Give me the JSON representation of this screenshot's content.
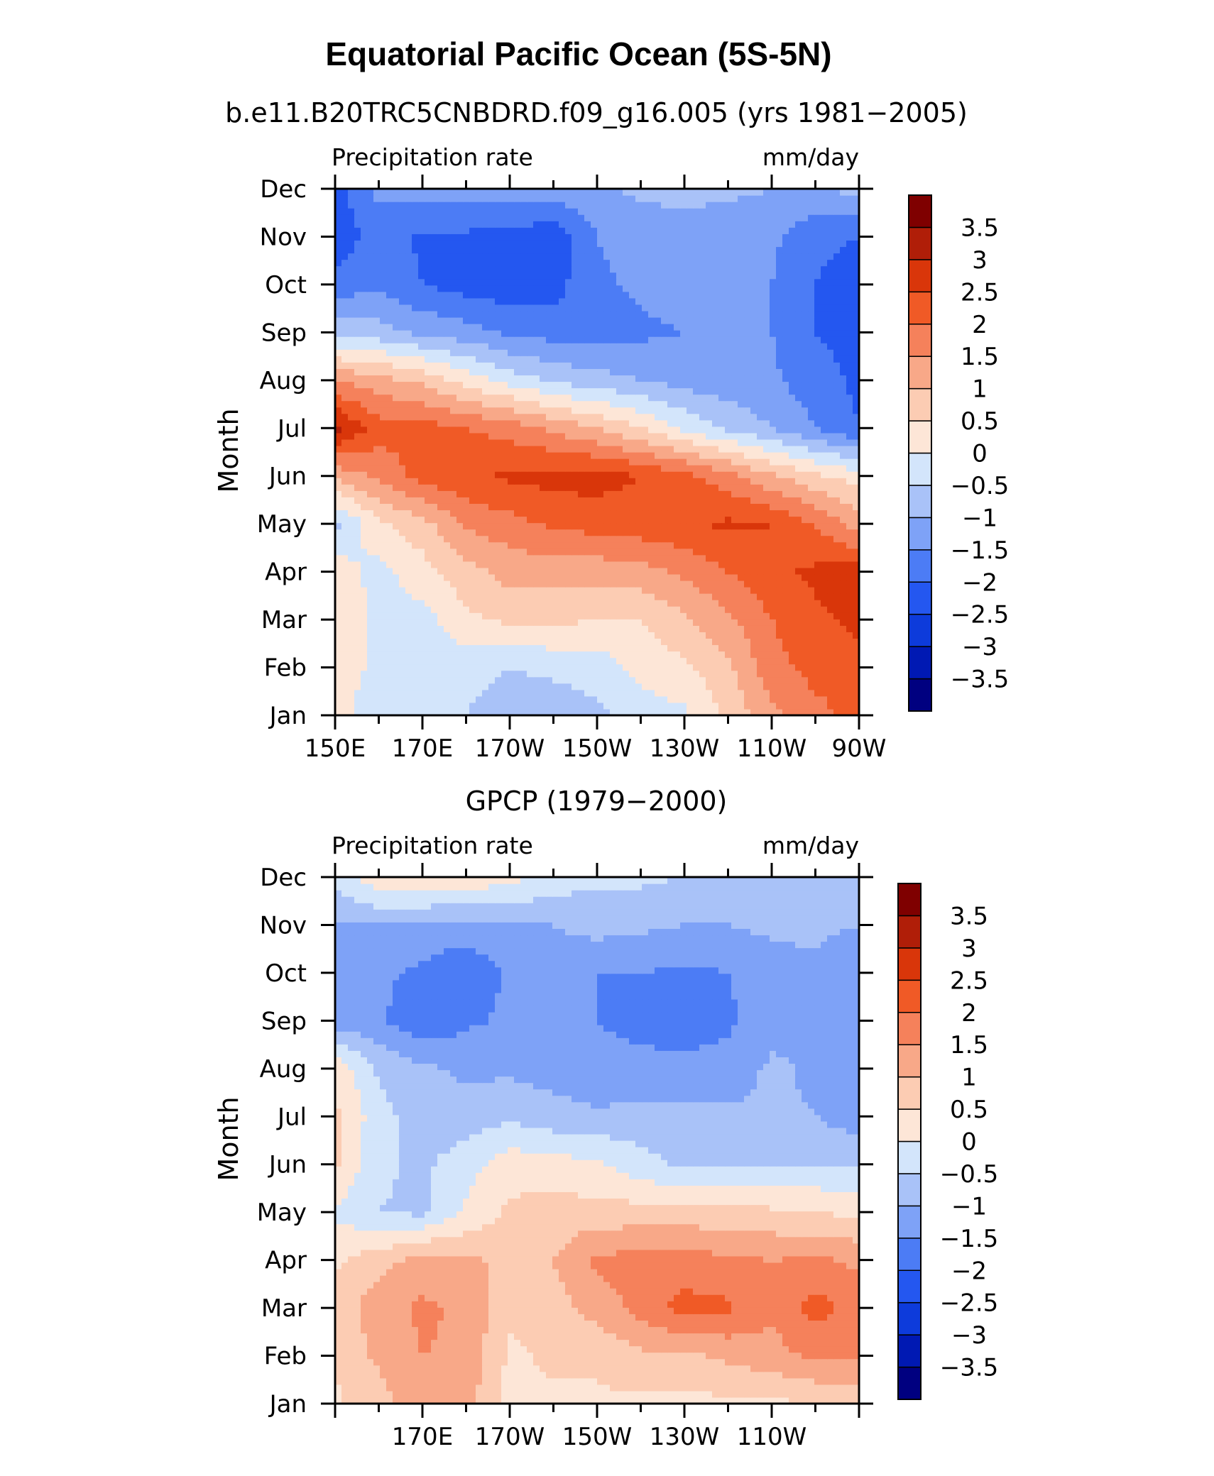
{
  "title": "Equatorial Pacific Ocean (5S-5N)",
  "colors": {
    "bins": [
      "#000080",
      "#0019b3",
      "#0d3bdb",
      "#2457f0",
      "#4c7cf5",
      "#7ea2f7",
      "#a9c2f8",
      "#d3e5fb",
      "#fde6d7",
      "#fcccb3",
      "#f8a888",
      "#f5815b",
      "#f05a26",
      "#d9360a",
      "#b01e08",
      "#7f0000"
    ]
  },
  "chart_data": [
    {
      "type": "heatmap",
      "subtitle": "b.e11.B20TRC5CNBDRD.f09_g16.005 (yrs 1981−2005)",
      "left_label": "Precipitation rate",
      "right_label": "mm/day",
      "ylabel": "Month",
      "x_ticklabels": [
        "150E",
        "170E",
        "170W",
        "150W",
        "130W",
        "110W",
        "90W"
      ],
      "y_ticklabels": [
        "Jan",
        "Feb",
        "Mar",
        "Apr",
        "May",
        "Jun",
        "Jul",
        "Aug",
        "Sep",
        "Oct",
        "Nov",
        "Dec"
      ],
      "colorbar_labels": [
        "3.5",
        "3",
        "2.5",
        "2",
        "1.5",
        "1",
        "0.5",
        "0",
        "−0.5",
        "−1",
        "−1.5",
        "−2",
        "−2.5",
        "−3",
        "−3.5"
      ],
      "levels": [
        -3.5,
        -3,
        -2.5,
        -2,
        -1.5,
        -1,
        -0.5,
        0,
        0.5,
        1,
        1.5,
        2,
        2.5,
        3,
        3.5
      ],
      "x_lon_east": [
        150,
        160,
        170,
        180,
        190,
        200,
        210,
        220,
        230,
        240,
        250,
        260,
        270
      ],
      "months": [
        "Jan",
        "Feb",
        "Mar",
        "Apr",
        "May",
        "Jun",
        "Jul",
        "Aug",
        "Sep",
        "Oct",
        "Nov",
        "Dec"
      ],
      "z": [
        [
          0.2,
          -0.3,
          -0.3,
          -0.5,
          -0.8,
          -0.8,
          -0.6,
          -0.3,
          -0.1,
          0.6,
          1.4,
          1.8,
          2.2
        ],
        [
          0.2,
          -0.1,
          -0.3,
          -0.3,
          -0.5,
          -0.4,
          -0.3,
          0.2,
          0.4,
          0.9,
          1.8,
          2.2,
          2.4
        ],
        [
          0.4,
          -0.1,
          -0.2,
          0.4,
          0.6,
          0.6,
          0.5,
          0.5,
          0.9,
          1.4,
          2.0,
          2.4,
          2.6
        ],
        [
          0.3,
          -0.2,
          0.3,
          0.8,
          1.2,
          1.2,
          1.2,
          1.3,
          1.6,
          2.0,
          2.4,
          2.6,
          2.8
        ],
        [
          -0.7,
          0.4,
          0.8,
          1.6,
          1.8,
          2.1,
          2.2,
          2.3,
          2.4,
          2.6,
          2.5,
          2.0,
          1.2
        ],
        [
          1.1,
          1.6,
          2.2,
          2.4,
          2.6,
          2.7,
          2.7,
          2.5,
          2.2,
          1.7,
          1.1,
          0.6,
          0.3
        ],
        [
          3.2,
          2.2,
          2.2,
          2.0,
          1.8,
          1.4,
          1.0,
          0.5,
          -0.1,
          -0.6,
          -1.0,
          -1.5,
          -2.0
        ],
        [
          1.5,
          1.2,
          0.9,
          0.3,
          -0.2,
          -0.6,
          -0.8,
          -1.0,
          -1.2,
          -1.3,
          -1.4,
          -1.8,
          -2.1
        ],
        [
          -0.7,
          -0.8,
          -1.1,
          -1.3,
          -1.6,
          -1.7,
          -1.7,
          -1.6,
          -1.5,
          -1.4,
          -1.5,
          -2.0,
          -2.2
        ],
        [
          -1.8,
          -1.6,
          -2.0,
          -2.2,
          -2.3,
          -2.2,
          -1.6,
          -1.4,
          -1.3,
          -1.3,
          -1.5,
          -2.0,
          -2.2
        ],
        [
          -2.4,
          -1.7,
          -2.1,
          -2.1,
          -2.2,
          -2.3,
          -1.5,
          -1.3,
          -1.3,
          -1.3,
          -1.4,
          -1.9,
          -2.0
        ],
        [
          -2.2,
          -1.4,
          -1.3,
          -1.3,
          -1.3,
          -1.3,
          -1.1,
          -0.9,
          -0.8,
          -0.9,
          -1.0,
          -1.1,
          -0.8
        ]
      ],
      "zmin": -3.5,
      "zmax": 3.5
    },
    {
      "type": "heatmap",
      "subtitle": "GPCP (1979−2000)",
      "left_label": "Precipitation rate",
      "right_label": "mm/day",
      "ylabel": "Month",
      "x_ticklabels": [
        "170E",
        "170W",
        "150W",
        "130W",
        "110W"
      ],
      "y_ticklabels": [
        "Jan",
        "Feb",
        "Mar",
        "Apr",
        "May",
        "Jun",
        "Jul",
        "Aug",
        "Sep",
        "Oct",
        "Nov",
        "Dec"
      ],
      "colorbar_labels": [
        "3.5",
        "3",
        "2.5",
        "2",
        "1.5",
        "1",
        "0.5",
        "0",
        "−0.5",
        "−1",
        "−1.5",
        "−2",
        "−2.5",
        "−3",
        "−3.5"
      ],
      "levels": [
        -3.5,
        -3,
        -2.5,
        -2,
        -1.5,
        -1,
        -0.5,
        0,
        0.5,
        1,
        1.5,
        2,
        2.5,
        3,
        3.5
      ],
      "x_lon_east": [
        150,
        160,
        170,
        180,
        190,
        200,
        210,
        220,
        230,
        240,
        250,
        260,
        270
      ],
      "months": [
        "Jan",
        "Feb",
        "Mar",
        "Apr",
        "May",
        "Jun",
        "Jul",
        "Aug",
        "Sep",
        "Oct",
        "Nov",
        "Dec"
      ],
      "z": [
        [
          0.4,
          0.8,
          1.3,
          1.2,
          0.3,
          0.4,
          0.4,
          0.4,
          0.3,
          0.4,
          0.4,
          0.5,
          0.6
        ],
        [
          0.6,
          1.1,
          1.5,
          1.4,
          0.4,
          0.6,
          0.6,
          0.9,
          0.9,
          1.1,
          1.3,
          1.6,
          1.6
        ],
        [
          0.7,
          1.3,
          1.6,
          1.4,
          0.6,
          0.8,
          1.2,
          1.7,
          2.2,
          2.1,
          1.6,
          2.2,
          1.8
        ],
        [
          0.4,
          0.8,
          1.2,
          1.1,
          0.9,
          1.0,
          1.6,
          1.7,
          1.7,
          1.6,
          1.5,
          1.6,
          1.4
        ],
        [
          -0.1,
          -0.5,
          -0.6,
          0.1,
          0.6,
          0.7,
          0.7,
          0.7,
          0.7,
          0.7,
          0.6,
          0.5,
          0.4
        ],
        [
          0.6,
          -0.4,
          -0.6,
          -0.2,
          0.3,
          0.2,
          0.1,
          -0.3,
          -0.6,
          -0.6,
          -0.6,
          -0.5,
          -0.5
        ],
        [
          0.6,
          -0.3,
          -0.8,
          -0.8,
          -0.6,
          -0.8,
          -0.9,
          -0.8,
          -0.8,
          -0.9,
          -0.9,
          -1.0,
          -1.3
        ],
        [
          0.4,
          -0.6,
          -0.9,
          -1.1,
          -1.1,
          -1.2,
          -1.4,
          -1.4,
          -1.4,
          -1.3,
          -0.9,
          -1.1,
          -1.4
        ],
        [
          -1.3,
          -1.4,
          -1.9,
          -1.6,
          -1.4,
          -1.3,
          -1.5,
          -1.6,
          -1.7,
          -1.6,
          -1.2,
          -1.1,
          -1.3
        ],
        [
          -1.4,
          -1.4,
          -1.6,
          -1.9,
          -1.4,
          -1.3,
          -1.5,
          -1.5,
          -1.6,
          -1.5,
          -1.2,
          -1.1,
          -1.4
        ],
        [
          -1.1,
          -1.0,
          -1.2,
          -1.2,
          -1.1,
          -1.0,
          -0.8,
          -0.9,
          -1.0,
          -1.0,
          -0.9,
          -0.9,
          -1.0
        ],
        [
          -0.3,
          0.3,
          0.6,
          0.4,
          0.2,
          -0.2,
          -0.4,
          -0.4,
          -0.5,
          -0.6,
          -0.6,
          -0.7,
          -0.8
        ]
      ],
      "zmin": -3.5,
      "zmax": 3.5
    }
  ]
}
